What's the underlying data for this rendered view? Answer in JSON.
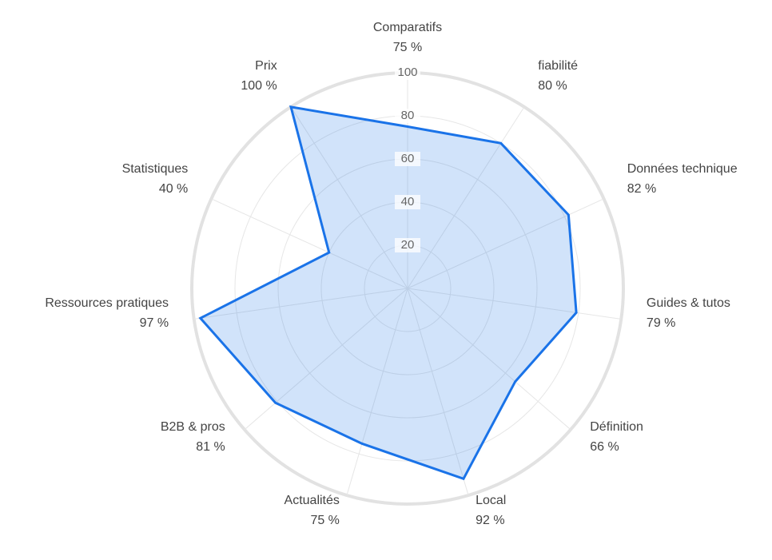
{
  "chart_data": {
    "type": "radar",
    "categories": [
      "Comparatifs",
      "fiabilité",
      "Données technique",
      "Guides & tutos",
      "Définition",
      "Local",
      "Actualités",
      "B2B & pros",
      "Ressources pratiques",
      "Statistiques",
      "Prix"
    ],
    "series": [
      {
        "color": "#1a73e8",
        "values": [
          75,
          80,
          82,
          79,
          66,
          92,
          75,
          81,
          97,
          40,
          100
        ],
        "value_labels": [
          "75 %",
          "80 %",
          "82 %",
          "79 %",
          "66 %",
          "92 %",
          "75 %",
          "81 %",
          "97 %",
          "40 %",
          "100 %"
        ]
      }
    ],
    "ylim": [
      0,
      100
    ],
    "yticks": [
      20,
      40,
      60,
      80,
      100
    ],
    "grid": true
  }
}
